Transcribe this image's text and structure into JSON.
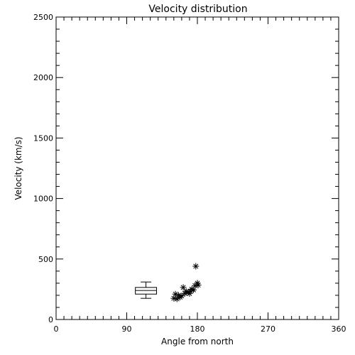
{
  "chart_data": {
    "type": "scatter",
    "title": "Velocity distribution",
    "xlabel": "Angle from north",
    "ylabel": "Velocity (km/s)",
    "xlim": [
      0,
      360
    ],
    "ylim": [
      0,
      2500
    ],
    "x_ticks": [
      "0",
      "90",
      "180",
      "270",
      "360"
    ],
    "y_ticks": [
      "0",
      "500",
      "1000",
      "1500",
      "2000",
      "2500"
    ],
    "grid": false,
    "series": [
      {
        "marker": "asterisk",
        "points": [
          {
            "x": 150,
            "y": 175
          },
          {
            "x": 152,
            "y": 210
          },
          {
            "x": 154,
            "y": 170
          },
          {
            "x": 156,
            "y": 200
          },
          {
            "x": 158,
            "y": 185
          },
          {
            "x": 160,
            "y": 195
          },
          {
            "x": 162,
            "y": 265
          },
          {
            "x": 164,
            "y": 215
          },
          {
            "x": 166,
            "y": 230
          },
          {
            "x": 168,
            "y": 225
          },
          {
            "x": 170,
            "y": 215
          },
          {
            "x": 171,
            "y": 235
          },
          {
            "x": 173,
            "y": 250
          },
          {
            "x": 175,
            "y": 245
          },
          {
            "x": 177,
            "y": 280
          },
          {
            "x": 178,
            "y": 440
          },
          {
            "x": 180,
            "y": 300
          },
          {
            "x": 181,
            "y": 285
          }
        ]
      }
    ],
    "boxplot": {
      "x_low": 101,
      "x_high": 128,
      "min": 175,
      "q1": 210,
      "median": 240,
      "q3": 265,
      "max": 310
    }
  },
  "colors": {
    "axis": "#000000",
    "marker": "#000000",
    "background": "#ffffff"
  }
}
